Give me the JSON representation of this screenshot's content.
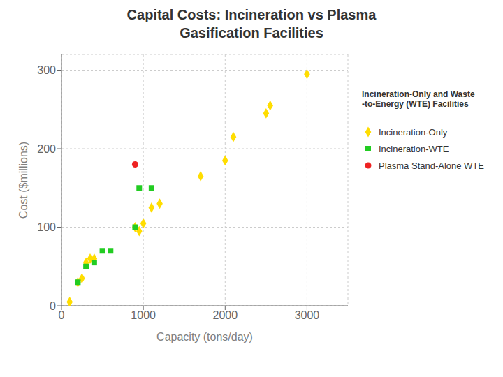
{
  "chart_data": {
    "type": "scatter",
    "title": "Capital Costs: Incineration vs Plasma\nGasification Facilities",
    "xlabel": "Capacity (tons/day)",
    "ylabel": "Cost ($millions)",
    "xlim": [
      0,
      3500
    ],
    "ylim": [
      0,
      320
    ],
    "xticks": [
      0,
      1000,
      2000,
      3000
    ],
    "yticks": [
      0,
      100,
      200,
      300
    ],
    "grid": true,
    "legend": "right",
    "annotations": [
      "Incineration-Only and Waste\n-to-Energy (WTE) Facilities"
    ],
    "series": [
      {
        "name": "Incineration-Only",
        "color": "#ffdd00",
        "marker": "diamond",
        "x": [
          100,
          200,
          250,
          300,
          350,
          400,
          900,
          950,
          1000,
          1100,
          1200,
          1700,
          2000,
          2100,
          2500,
          2550,
          3000
        ],
        "values": [
          5,
          30,
          35,
          55,
          60,
          60,
          100,
          95,
          105,
          125,
          130,
          165,
          185,
          215,
          245,
          255,
          295
        ]
      },
      {
        "name": "Incineration-WTE",
        "color": "#22cc22",
        "marker": "square",
        "x": [
          200,
          300,
          400,
          500,
          600,
          900,
          950,
          1100
        ],
        "values": [
          30,
          50,
          55,
          70,
          70,
          100,
          150,
          150
        ]
      },
      {
        "name": "Plasma Stand-Alone WTE",
        "color": "#ee2222",
        "marker": "circle",
        "x": [
          900
        ],
        "values": [
          180
        ]
      }
    ]
  }
}
